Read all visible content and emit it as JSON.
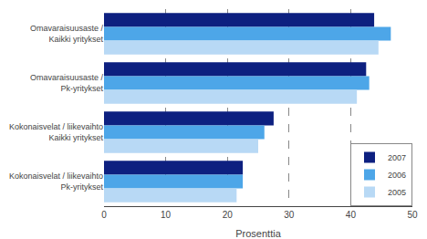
{
  "chart_data": {
    "type": "bar",
    "orientation": "horizontal",
    "categories": [
      "Omavaraisuusaste /\nKaikki yritykset",
      "Omavaraisuusaste /\nPk-yritykset",
      "Kokonaisvelat / liikevaihto\nKaikki yritykset",
      "Kokonaisvelat / liikevaihto\nPk-yritykset"
    ],
    "series": [
      {
        "name": "2007",
        "color": "#0d2080",
        "values": [
          43.8,
          42.5,
          27.5,
          22.5
        ]
      },
      {
        "name": "2006",
        "color": "#4da6e8",
        "values": [
          46.5,
          43.0,
          26.0,
          22.5
        ]
      },
      {
        "name": "2005",
        "color": "#b8d9f5",
        "values": [
          44.5,
          41.0,
          25.0,
          21.5
        ]
      }
    ],
    "xlabel": "Prosenttia",
    "xlim": [
      0,
      50
    ],
    "xticks": [
      0,
      10,
      20,
      30,
      40,
      50
    ],
    "grid": true,
    "legend": "lower right"
  }
}
